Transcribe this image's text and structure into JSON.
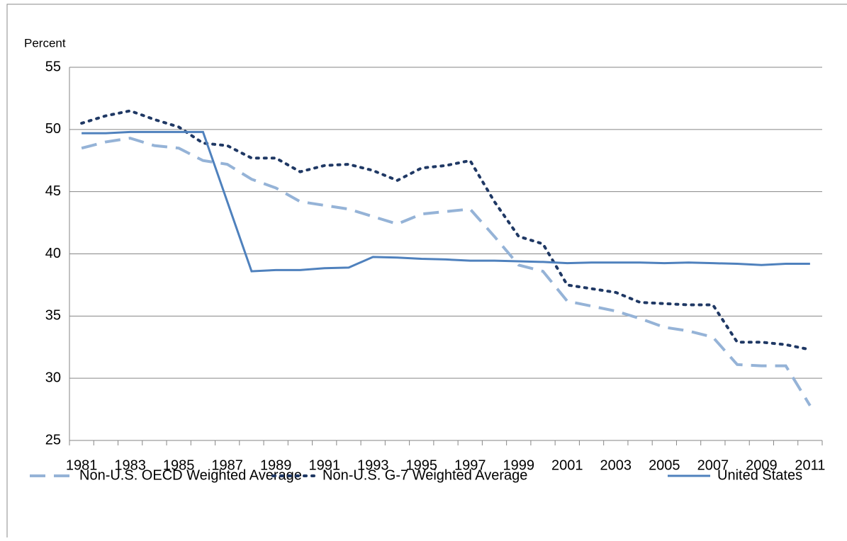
{
  "chart_data": {
    "type": "line",
    "y_label": "Percent",
    "categories": [
      "1981",
      null,
      "1983",
      null,
      "1985",
      null,
      "1987",
      null,
      "1989",
      null,
      "1991",
      null,
      "1993",
      null,
      "1995",
      null,
      "1997",
      null,
      "1999",
      null,
      "2001",
      null,
      "2003",
      null,
      "2005",
      null,
      "2007",
      null,
      "2009",
      null,
      "2011"
    ],
    "ylim": [
      25,
      55
    ],
    "yticks": [
      25,
      30,
      35,
      40,
      45,
      50,
      55
    ],
    "grid": true,
    "legend": "bottom",
    "series": [
      {
        "name": "Non-U.S. OECD Weighted Average",
        "color": "#95b3d7",
        "style": "dashed",
        "values": [
          48.5,
          49.0,
          49.3,
          48.7,
          48.5,
          47.5,
          47.2,
          46.0,
          45.3,
          44.2,
          43.9,
          43.6,
          43.0,
          42.4,
          43.2,
          43.4,
          43.6,
          41.4,
          39.1,
          38.6,
          36.2,
          35.8,
          35.4,
          34.8,
          34.1,
          33.8,
          33.3,
          31.1,
          31.0,
          31.0,
          27.8
        ]
      },
      {
        "name": "Non-U.S. G-7 Weighted Average",
        "color": "#1f3864",
        "style": "dotted",
        "values": [
          50.5,
          51.1,
          51.5,
          50.8,
          50.2,
          48.9,
          48.7,
          47.7,
          47.7,
          46.6,
          47.1,
          47.2,
          46.7,
          45.9,
          46.9,
          47.1,
          47.5,
          44.2,
          41.4,
          40.8,
          37.5,
          37.2,
          36.9,
          36.1,
          36.0,
          35.9,
          35.9,
          32.9,
          32.9,
          32.7,
          32.3
        ]
      },
      {
        "name": "United States",
        "color": "#4f81bd",
        "style": "solid",
        "values": [
          49.7,
          49.7,
          49.8,
          49.8,
          49.8,
          49.8,
          44.2,
          38.6,
          38.7,
          38.7,
          38.85,
          38.9,
          39.75,
          39.7,
          39.6,
          39.55,
          39.45,
          39.45,
          39.4,
          39.35,
          39.25,
          39.3,
          39.3,
          39.3,
          39.25,
          39.3,
          39.25,
          39.2,
          39.1,
          39.2,
          39.2
        ]
      }
    ]
  }
}
